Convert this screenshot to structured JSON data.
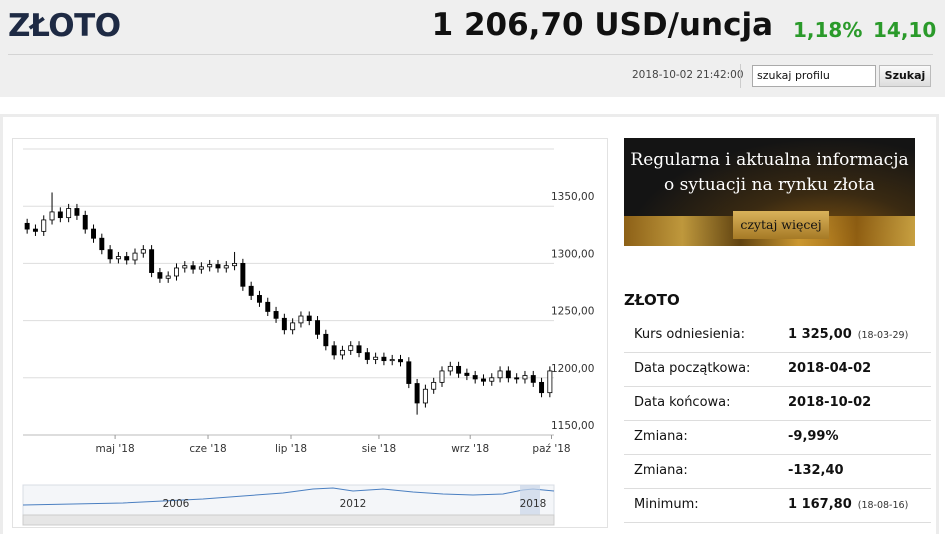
{
  "header": {
    "title": "ZŁOTO",
    "price": "1 206,70 USD/uncja",
    "change_pct": "1,18%",
    "change_abs": "14,10",
    "datetime": "2018-10-02 21:42:00",
    "search_placeholder": "szukaj profilu",
    "search_button": "Szukaj"
  },
  "chart_data": {
    "type": "candlestick",
    "open": [
      1335,
      1330,
      1328,
      1338,
      1345,
      1340,
      1348,
      1342,
      1330,
      1322,
      1312,
      1304,
      1306,
      1303,
      1309,
      1312,
      1292,
      1287,
      1289,
      1296,
      1298,
      1295,
      1297,
      1299,
      1296,
      1298,
      1300,
      1280,
      1272,
      1266,
      1258,
      1252,
      1242,
      1248,
      1254,
      1250,
      1238,
      1228,
      1220,
      1224,
      1228,
      1222,
      1216,
      1218,
      1215,
      1216,
      1214,
      1195,
      1178,
      1190,
      1196,
      1206,
      1210,
      1204,
      1202,
      1199,
      1197,
      1200,
      1206,
      1200,
      1199,
      1202,
      1196,
      1187
    ],
    "high": [
      1339,
      1334,
      1342,
      1362,
      1349,
      1352,
      1352,
      1346,
      1334,
      1326,
      1316,
      1310,
      1310,
      1313,
      1316,
      1316,
      1296,
      1293,
      1300,
      1302,
      1302,
      1301,
      1303,
      1303,
      1302,
      1310,
      1304,
      1284,
      1276,
      1270,
      1262,
      1256,
      1252,
      1258,
      1258,
      1254,
      1242,
      1232,
      1228,
      1232,
      1232,
      1226,
      1222,
      1222,
      1220,
      1220,
      1218,
      1199,
      1194,
      1200,
      1210,
      1214,
      1214,
      1208,
      1206,
      1203,
      1204,
      1210,
      1210,
      1204,
      1206,
      1206,
      1200,
      1210
    ],
    "low": [
      1326,
      1324,
      1324,
      1334,
      1336,
      1336,
      1338,
      1326,
      1318,
      1308,
      1300,
      1300,
      1299,
      1299,
      1305,
      1288,
      1283,
      1283,
      1285,
      1292,
      1291,
      1291,
      1293,
      1292,
      1292,
      1294,
      1276,
      1268,
      1262,
      1254,
      1248,
      1238,
      1238,
      1244,
      1246,
      1234,
      1224,
      1216,
      1216,
      1220,
      1218,
      1212,
      1212,
      1211,
      1211,
      1210,
      1191,
      1167.8,
      1174,
      1186,
      1192,
      1202,
      1200,
      1198,
      1195,
      1193,
      1193,
      1196,
      1196,
      1195,
      1195,
      1192,
      1183,
      1183
    ],
    "close": [
      1330,
      1328,
      1338,
      1345,
      1340,
      1348,
      1342,
      1330,
      1322,
      1312,
      1304,
      1306,
      1303,
      1309,
      1312,
      1292,
      1287,
      1289,
      1296,
      1298,
      1295,
      1297,
      1299,
      1296,
      1298,
      1300,
      1280,
      1272,
      1266,
      1258,
      1252,
      1242,
      1248,
      1254,
      1250,
      1238,
      1228,
      1220,
      1224,
      1228,
      1222,
      1216,
      1218,
      1215,
      1216,
      1214,
      1195,
      1178,
      1190,
      1196,
      1206,
      1210,
      1204,
      1202,
      1199,
      1197,
      1200,
      1206,
      1200,
      1199,
      1202,
      1196,
      1187,
      1206
    ],
    "up_color": "#ffffff",
    "down_color": "#000000",
    "ylim": [
      1150,
      1400
    ],
    "yticks": [
      {
        "value": 1150,
        "label": "1150,00"
      },
      {
        "value": 1200,
        "label": "1200,00"
      },
      {
        "value": 1250,
        "label": "1250,00"
      },
      {
        "value": 1300,
        "label": "1300,00"
      },
      {
        "value": 1350,
        "label": "1350,00"
      }
    ],
    "xlim": [
      -0.5,
      63.5
    ],
    "xticks": [
      {
        "value": 10.6,
        "label": "maj '18"
      },
      {
        "value": 21.8,
        "label": "cze '18"
      },
      {
        "value": 31.8,
        "label": "lip '18"
      },
      {
        "value": 42.4,
        "label": "sie '18"
      },
      {
        "value": 53.4,
        "label": "wrz '18"
      },
      {
        "value": 63.2,
        "label": "paź '18"
      }
    ],
    "grid": true
  },
  "navigator": {
    "labels": [
      "2006",
      "2012",
      "2018"
    ]
  },
  "banner": {
    "line1": "Regularna i aktualna informacja",
    "line2": "o sytuacji na rynku złota",
    "button": "czytaj więcej"
  },
  "info": {
    "title": "ZŁOTO",
    "rows": [
      {
        "label": "Kurs odniesienia:",
        "value": "1 325,00",
        "note": "(18-03-29)"
      },
      {
        "label": "Data początkowa:",
        "value": "2018-04-02"
      },
      {
        "label": "Data końcowa:",
        "value": "2018-10-02"
      },
      {
        "label": "Zmiana:",
        "value": "-9,99%"
      },
      {
        "label": "Zmiana:",
        "value": "-132,40"
      },
      {
        "label": "Minimum:",
        "value": "1 167,80",
        "note": "(18-08-16)"
      }
    ]
  }
}
